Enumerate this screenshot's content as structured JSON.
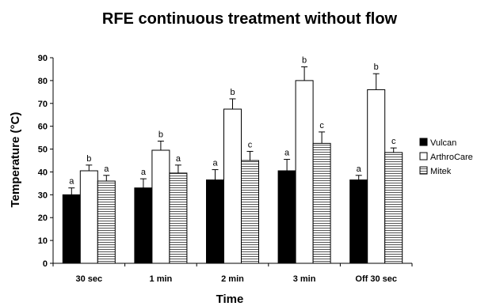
{
  "chart_data": {
    "type": "bar",
    "title": "RFE continuous treatment without flow",
    "xlabel": "Time",
    "ylabel": "Temperature (°C)",
    "ylim": [
      0,
      90
    ],
    "yticks": [
      0,
      10,
      20,
      30,
      40,
      50,
      60,
      70,
      80,
      90
    ],
    "categories": [
      "30 sec",
      "1 min",
      "2 min",
      "3 min",
      "Off 30 sec"
    ],
    "legend_position": "right",
    "grid": false,
    "error_bars": "upper",
    "series": [
      {
        "name": "Vulcan",
        "fill": "black",
        "color": "#000000",
        "values": [
          30,
          33,
          36.5,
          40.5,
          36.5
        ],
        "errors": [
          3,
          4,
          4.5,
          5,
          2
        ],
        "labels": [
          "a",
          "a",
          "a",
          "a",
          "a"
        ]
      },
      {
        "name": "ArthroCare",
        "fill": "white",
        "color": "#ffffff",
        "values": [
          40.5,
          49.5,
          67.5,
          80,
          76
        ],
        "errors": [
          2.5,
          4,
          4.5,
          6,
          7
        ],
        "labels": [
          "b",
          "b",
          "b",
          "b",
          "b"
        ]
      },
      {
        "name": "Mitek",
        "fill": "horizontal-stripes",
        "color": "#888888",
        "values": [
          36,
          39.5,
          45,
          52.5,
          48.5
        ],
        "errors": [
          2.5,
          3.5,
          4,
          5,
          2
        ],
        "labels": [
          "a",
          "a",
          "c",
          "c",
          "c"
        ]
      }
    ]
  }
}
